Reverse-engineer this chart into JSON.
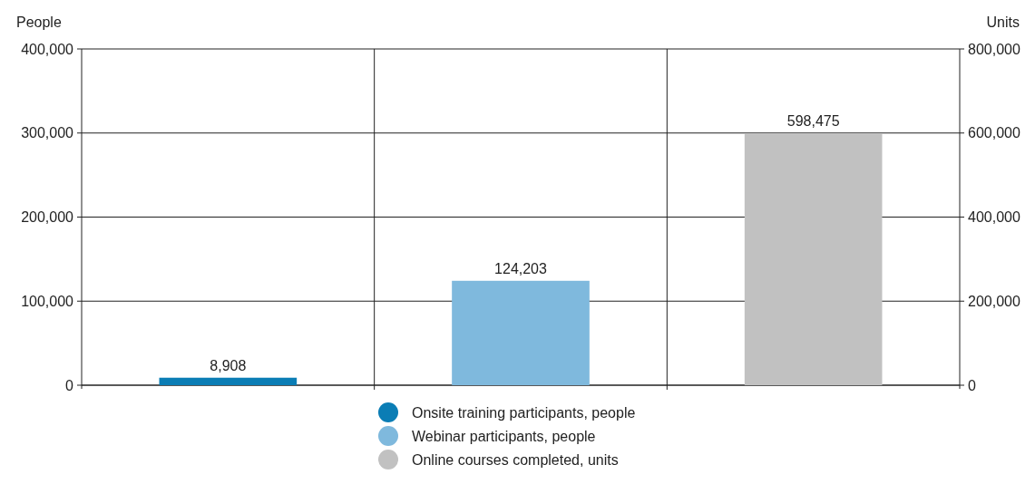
{
  "chart_data": {
    "type": "bar",
    "ylabel": "People",
    "y2label": "Units",
    "categories": [
      null,
      null,
      null
    ],
    "series": [
      {
        "name": "Onsite training participants, people",
        "color": "#0b7db5",
        "values": [
          8908,
          null,
          null
        ],
        "value_labels": [
          "8,908",
          null,
          null
        ]
      },
      {
        "name": "Webinar participants, people",
        "color": "#7fb9dd",
        "values": [
          null,
          124203,
          null
        ],
        "value_labels": [
          null,
          "124,203",
          null
        ]
      },
      {
        "name": "Online courses completed, units",
        "color": "#c1c1c1",
        "values": [
          null,
          null,
          598475
        ],
        "value_labels": [
          null,
          null,
          "598,475"
        ],
        "axis": "y2"
      }
    ],
    "ylim": [
      0,
      400000
    ],
    "yticks": [
      {
        "value": 0,
        "label": "0"
      },
      {
        "value": 100000,
        "label": "100,000"
      },
      {
        "value": 200000,
        "label": "200,000"
      },
      {
        "value": 300000,
        "label": "300,000"
      },
      {
        "value": 400000,
        "label": "400,000"
      }
    ],
    "y2lim": [
      0,
      800000
    ],
    "y2ticks": [
      {
        "value": 0,
        "label": "0"
      },
      {
        "value": 200000,
        "label": "200,000"
      },
      {
        "value": 400000,
        "label": "400,000"
      },
      {
        "value": 600000,
        "label": "600,000"
      },
      {
        "value": 800000,
        "label": "800,000"
      }
    ],
    "grid": true,
    "legend": "bottom"
  }
}
